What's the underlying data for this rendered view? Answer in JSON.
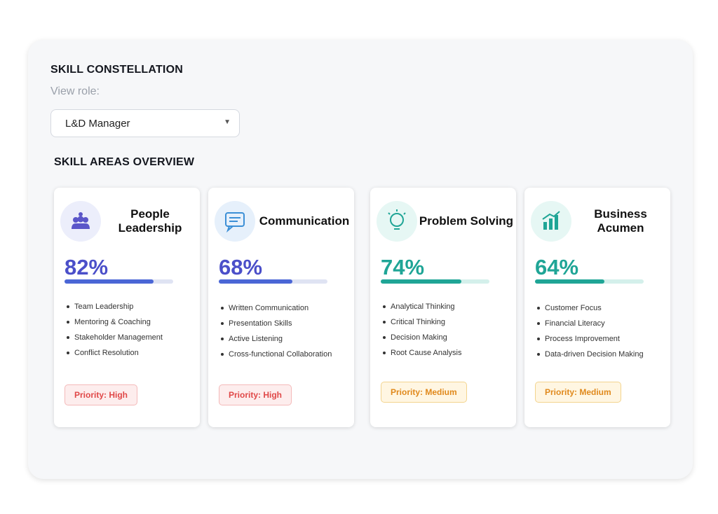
{
  "header": {
    "title": "SKILL CONSTELLATION",
    "view_label": "View role:",
    "selected_role": "L&D Manager"
  },
  "overview": {
    "title": "SKILL AREAS OVERVIEW",
    "cards": [
      {
        "title": "People Leadership",
        "score": {
          "value": 82,
          "label": "82%"
        },
        "skills": [
          "Team Leadership",
          "Mentoring & Coaching",
          "Stakeholder Management",
          "Conflict Resolution"
        ],
        "priority": "Priority: High"
      },
      {
        "title": "Communication",
        "score": {
          "value": 68,
          "label": "68%"
        },
        "skills": [
          "Written Communication",
          "Presentation Skills",
          "Active Listening",
          "Cross-functional Collaboration"
        ],
        "priority": "Priority: High"
      },
      {
        "title": "Problem Solving",
        "score": {
          "value": 74,
          "label": "74%"
        },
        "skills": [
          "Analytical Thinking",
          "Critical Thinking",
          "Decision Making",
          "Root Cause Analysis"
        ],
        "priority": "Priority: Medium"
      },
      {
        "title": "Business Acumen",
        "score": {
          "value": 64,
          "label": "64%"
        },
        "skills": [
          "Customer Focus",
          "Financial Literacy",
          "Process Improvement",
          "Data-driven Decision Making"
        ],
        "priority": "Priority: Medium"
      }
    ]
  }
}
